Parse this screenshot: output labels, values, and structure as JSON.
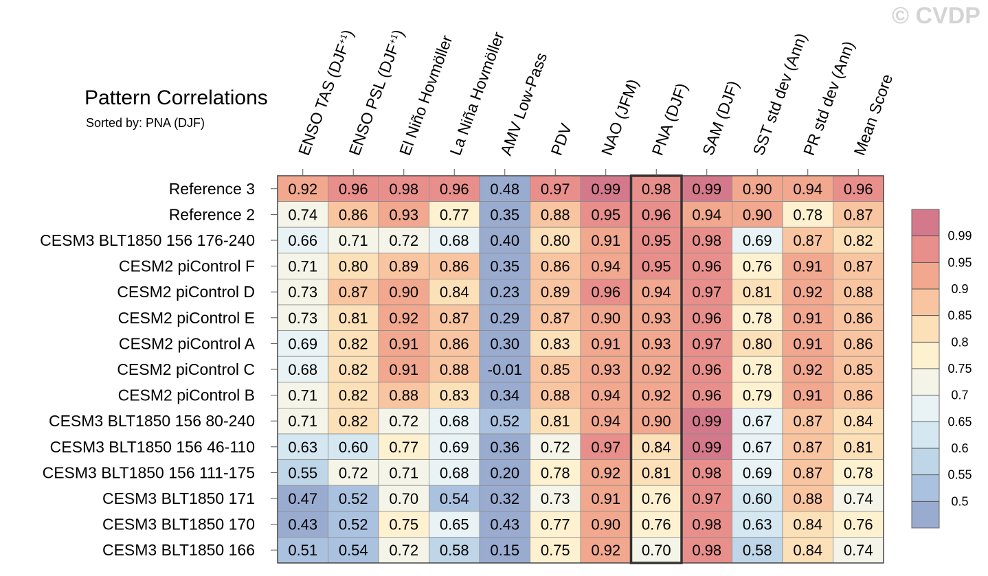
{
  "watermark": "© CVDP",
  "chart_data": {
    "type": "heatmap",
    "title": "Pattern Correlations",
    "subtitle": "Sorted by: PNA (DJF)",
    "highlight_column": "PNA (DJF)",
    "columns": [
      {
        "label": "ENSO TAS (DJF",
        "sup": "+1",
        "suffix": ")"
      },
      {
        "label": "ENSO PSL (DJF",
        "sup": "+1",
        "suffix": ")"
      },
      {
        "label": "El Niño Hovmöller"
      },
      {
        "label": "La Niña Hovmöller"
      },
      {
        "label": "AMV Low-Pass"
      },
      {
        "label": "PDV"
      },
      {
        "label": "NAO (JFM)"
      },
      {
        "label": "PNA (DJF)"
      },
      {
        "label": "SAM (DJF)"
      },
      {
        "label": "SST std dev (Ann)"
      },
      {
        "label": "PR std dev (Ann)"
      },
      {
        "label": "Mean Score"
      }
    ],
    "rows": [
      {
        "name": "Reference 3",
        "values": [
          "0.92",
          "0.96",
          "0.98",
          "0.96",
          "0.48",
          "0.97",
          "0.99",
          "0.98",
          "0.99",
          "0.90",
          "0.94",
          "0.96"
        ]
      },
      {
        "name": "Reference 2",
        "values": [
          "0.74",
          "0.86",
          "0.93",
          "0.77",
          "0.35",
          "0.88",
          "0.95",
          "0.96",
          "0.94",
          "0.90",
          "0.78",
          "0.87"
        ]
      },
      {
        "name": "CESM3 BLT1850 156 176-240",
        "values": [
          "0.66",
          "0.71",
          "0.72",
          "0.68",
          "0.40",
          "0.80",
          "0.91",
          "0.95",
          "0.98",
          "0.69",
          "0.87",
          "0.82"
        ]
      },
      {
        "name": "CESM2 piControl F",
        "values": [
          "0.71",
          "0.80",
          "0.89",
          "0.86",
          "0.35",
          "0.86",
          "0.94",
          "0.95",
          "0.96",
          "0.76",
          "0.91",
          "0.87"
        ]
      },
      {
        "name": "CESM2 piControl D",
        "values": [
          "0.73",
          "0.87",
          "0.90",
          "0.84",
          "0.23",
          "0.89",
          "0.96",
          "0.94",
          "0.97",
          "0.81",
          "0.92",
          "0.88"
        ]
      },
      {
        "name": "CESM2 piControl E",
        "values": [
          "0.73",
          "0.81",
          "0.92",
          "0.87",
          "0.29",
          "0.87",
          "0.90",
          "0.93",
          "0.96",
          "0.78",
          "0.91",
          "0.86"
        ]
      },
      {
        "name": "CESM2 piControl A",
        "values": [
          "0.69",
          "0.82",
          "0.91",
          "0.86",
          "0.30",
          "0.83",
          "0.91",
          "0.93",
          "0.97",
          "0.80",
          "0.91",
          "0.86"
        ]
      },
      {
        "name": "CESM2 piControl C",
        "values": [
          "0.68",
          "0.82",
          "0.91",
          "0.88",
          "-0.01",
          "0.85",
          "0.93",
          "0.92",
          "0.96",
          "0.78",
          "0.92",
          "0.85"
        ]
      },
      {
        "name": "CESM2 piControl B",
        "values": [
          "0.71",
          "0.82",
          "0.88",
          "0.83",
          "0.34",
          "0.88",
          "0.94",
          "0.92",
          "0.96",
          "0.79",
          "0.91",
          "0.86"
        ]
      },
      {
        "name": "CESM3 BLT1850 156 80-240",
        "values": [
          "0.71",
          "0.82",
          "0.72",
          "0.68",
          "0.52",
          "0.81",
          "0.94",
          "0.90",
          "0.99",
          "0.67",
          "0.87",
          "0.84"
        ]
      },
      {
        "name": "CESM3 BLT1850 156 46-110",
        "values": [
          "0.63",
          "0.60",
          "0.77",
          "0.69",
          "0.36",
          "0.72",
          "0.97",
          "0.84",
          "0.99",
          "0.67",
          "0.87",
          "0.81"
        ]
      },
      {
        "name": "CESM3 BLT1850 156 111-175",
        "values": [
          "0.55",
          "0.72",
          "0.71",
          "0.68",
          "0.20",
          "0.78",
          "0.92",
          "0.81",
          "0.98",
          "0.69",
          "0.87",
          "0.78"
        ]
      },
      {
        "name": "CESM3 BLT1850 171",
        "values": [
          "0.47",
          "0.52",
          "0.70",
          "0.54",
          "0.32",
          "0.73",
          "0.91",
          "0.76",
          "0.97",
          "0.60",
          "0.88",
          "0.74"
        ]
      },
      {
        "name": "CESM3 BLT1850 170",
        "values": [
          "0.43",
          "0.52",
          "0.75",
          "0.65",
          "0.43",
          "0.77",
          "0.90",
          "0.76",
          "0.98",
          "0.63",
          "0.84",
          "0.76"
        ]
      },
      {
        "name": "CESM3 BLT1850 166",
        "values": [
          "0.51",
          "0.54",
          "0.72",
          "0.58",
          "0.15",
          "0.75",
          "0.92",
          "0.70",
          "0.98",
          "0.58",
          "0.84",
          "0.74"
        ]
      }
    ],
    "colorbar": {
      "tick_labels": [
        "0.99",
        "0.95",
        "0.9",
        "0.85",
        "0.8",
        "0.75",
        "0.7",
        "0.65",
        "0.6",
        "0.55",
        "0.5"
      ],
      "thresholds": [
        0.5,
        0.55,
        0.6,
        0.65,
        0.7,
        0.75,
        0.8,
        0.85,
        0.9,
        0.95,
        0.99
      ],
      "colors": [
        "#9aabd0",
        "#aac2df",
        "#bed6e8",
        "#d5e7f0",
        "#e9f3f5",
        "#f4f4e8",
        "#fdf1d0",
        "#fce0b8",
        "#f9c5a0",
        "#f1a88e",
        "#e88f8c",
        "#d4798b"
      ]
    }
  }
}
